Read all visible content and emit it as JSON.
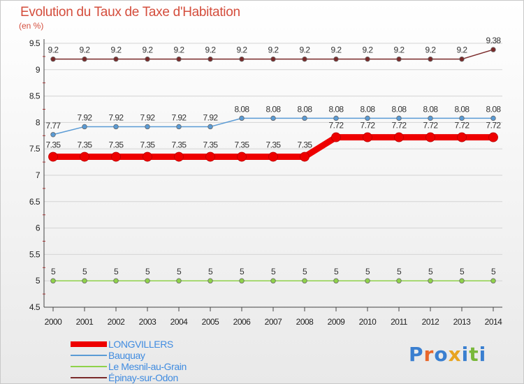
{
  "chart_data": {
    "type": "line",
    "title": "Evolution du Taux de Taxe d'Habitation",
    "ylabel": "(en %)",
    "xlabel": "",
    "ylim": [
      4.5,
      9.5
    ],
    "yticks": [
      "4.5",
      "5",
      "5.5",
      "6",
      "6.5",
      "7",
      "7.5",
      "8",
      "8.5",
      "9",
      "9.5"
    ],
    "categories": [
      "2000",
      "2001",
      "2002",
      "2003",
      "2004",
      "2005",
      "2006",
      "2007",
      "2008",
      "2009",
      "2010",
      "2011",
      "2012",
      "2013",
      "2014"
    ],
    "grid": true,
    "series": [
      {
        "name": "LONGVILLERS",
        "color": "#ee0000",
        "values": [
          7.35,
          7.35,
          7.35,
          7.35,
          7.35,
          7.35,
          7.35,
          7.35,
          7.35,
          7.72,
          7.72,
          7.72,
          7.72,
          7.72,
          7.72
        ],
        "labels": [
          "7.35",
          "7.35",
          "7.35",
          "7.35",
          "7.35",
          "7.35",
          "7.35",
          "7.35",
          "7.35",
          "7.72",
          "7.72",
          "7.72",
          "7.72",
          "7.72",
          "7.72"
        ]
      },
      {
        "name": "Bauquay",
        "color": "#5a9bd5",
        "values": [
          7.77,
          7.92,
          7.92,
          7.92,
          7.92,
          7.92,
          8.08,
          8.08,
          8.08,
          8.08,
          8.08,
          8.08,
          8.08,
          8.08,
          8.08
        ],
        "labels": [
          "7.77",
          "7.92",
          "7.92",
          "7.92",
          "7.92",
          "7.92",
          "8.08",
          "8.08",
          "8.08",
          "8.08",
          "8.08",
          "8.08",
          "8.08",
          "8.08",
          "8.08"
        ]
      },
      {
        "name": "Le Mesnil-au-Grain",
        "color": "#8fd24a",
        "values": [
          5,
          5,
          5,
          5,
          5,
          5,
          5,
          5,
          5,
          5,
          5,
          5,
          5,
          5,
          5
        ],
        "labels": [
          "5",
          "5",
          "5",
          "5",
          "5",
          "5",
          "5",
          "5",
          "5",
          "5",
          "5",
          "5",
          "5",
          "5",
          "5"
        ]
      },
      {
        "name": "Épinay-sur-Odon",
        "color": "#7a2a2a",
        "values": [
          9.2,
          9.2,
          9.2,
          9.2,
          9.2,
          9.2,
          9.2,
          9.2,
          9.2,
          9.2,
          9.2,
          9.2,
          9.2,
          9.2,
          9.38
        ],
        "labels": [
          "9.2",
          "9.2",
          "9.2",
          "9.2",
          "9.2",
          "9.2",
          "9.2",
          "9.2",
          "9.2",
          "9.2",
          "9.2",
          "9.2",
          "9.2",
          "9.2",
          "9.38"
        ]
      }
    ]
  },
  "brand": {
    "letters": [
      "P",
      "r",
      "o",
      "x",
      "i",
      "t",
      "i"
    ],
    "colors": [
      "#3a7fd0",
      "#e8662a",
      "#3a7fd0",
      "#e8a420",
      "#3a7fd0",
      "#79b83a",
      "#3a7fd0"
    ]
  }
}
